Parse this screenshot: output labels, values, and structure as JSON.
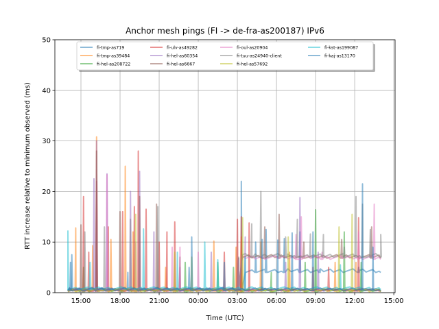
{
  "chart_data": {
    "type": "line",
    "title": "Anchor mesh pings (FI -> de-fra-as200187) IPv6",
    "xlabel": "Time (UTC)",
    "ylabel": "RTT increase relative to minimum observed (ms)",
    "x_unit": "hours since 00:00 of first day",
    "xlim": [
      13.0,
      39.1
    ],
    "ylim": [
      0,
      50
    ],
    "grid": true,
    "legend_placement": "top-center",
    "xticks": [
      {
        "x": 15,
        "label": "15:00"
      },
      {
        "x": 18,
        "label": "18:00"
      },
      {
        "x": 21,
        "label": "21:00"
      },
      {
        "x": 24,
        "label": "00:00"
      },
      {
        "x": 27,
        "label": "03:00"
      },
      {
        "x": 30,
        "label": "06:00"
      },
      {
        "x": 33,
        "label": "09:00"
      },
      {
        "x": 36,
        "label": "12:00"
      },
      {
        "x": 39,
        "label": "15:00"
      }
    ],
    "yticks": [
      0,
      10,
      20,
      30,
      40,
      50
    ],
    "series": [
      {
        "name": "fi-tmp-as719",
        "color": "#1f77b4",
        "baseline": [
          [
            14,
            0.5
          ],
          [
            27.2,
            0.5
          ],
          [
            27.3,
            4
          ],
          [
            38,
            4
          ]
        ],
        "spikes": [
          [
            14.3,
            7.5
          ],
          [
            18.6,
            4
          ],
          [
            23.3,
            5
          ],
          [
            27.3,
            22
          ],
          [
            28.4,
            10
          ],
          [
            29.2,
            12.5
          ],
          [
            30.6,
            10.7
          ],
          [
            31.8,
            12
          ],
          [
            33.3,
            4.5
          ],
          [
            36.3,
            5
          ]
        ]
      },
      {
        "name": "fi-tmp-as39484",
        "color": "#ff7f0e",
        "baseline": [
          [
            14,
            0.3
          ],
          [
            38,
            0.3
          ]
        ],
        "spikes": [
          [
            14.6,
            12.8
          ],
          [
            15.9,
            9.3
          ],
          [
            16.2,
            30.8
          ],
          [
            17.3,
            10.5
          ],
          [
            18.4,
            25
          ],
          [
            19.0,
            12
          ],
          [
            21.5,
            5
          ],
          [
            25.2,
            10.2
          ],
          [
            26.9,
            9
          ],
          [
            27.3,
            11
          ],
          [
            28.8,
            10
          ],
          [
            31.0,
            8
          ],
          [
            34.5,
            6
          ],
          [
            36.1,
            6
          ]
        ]
      },
      {
        "name": "fi-hel-as208722",
        "color": "#2ca02c",
        "baseline": [
          [
            14,
            0.2
          ],
          [
            38,
            0.2
          ]
        ],
        "spikes": [
          [
            15.2,
            5
          ],
          [
            23.0,
            6
          ],
          [
            25.5,
            6
          ],
          [
            26.7,
            5
          ],
          [
            29.6,
            4
          ],
          [
            32.2,
            6
          ],
          [
            33.0,
            16.4
          ],
          [
            35.2,
            12
          ],
          [
            36.5,
            6
          ]
        ]
      },
      {
        "name": "fi-ulv-as49282",
        "color": "#d62728",
        "baseline": [
          [
            14,
            0.3
          ],
          [
            38,
            0.3
          ]
        ],
        "spikes": [
          [
            15.2,
            19
          ],
          [
            15.6,
            8
          ],
          [
            16.2,
            22
          ],
          [
            17.1,
            13
          ],
          [
            18.2,
            16
          ],
          [
            19.1,
            17
          ],
          [
            19.4,
            28
          ],
          [
            20.0,
            16.5
          ],
          [
            21.0,
            10
          ],
          [
            21.6,
            12
          ],
          [
            22.2,
            14
          ],
          [
            26.0,
            8
          ],
          [
            27.0,
            14.5
          ],
          [
            27.3,
            15
          ],
          [
            27.9,
            13.8
          ],
          [
            32.8,
            5
          ],
          [
            34.0,
            5
          ],
          [
            36.3,
            14.8
          ]
        ]
      },
      {
        "name": "fi-hel-as60354",
        "color": "#9467bd",
        "baseline": [
          [
            14,
            0.3
          ],
          [
            38,
            0.3
          ]
        ],
        "spikes": [
          [
            16.0,
            22.5
          ],
          [
            16.2,
            30
          ],
          [
            17.0,
            23.5
          ],
          [
            18.8,
            20
          ],
          [
            19.5,
            24
          ],
          [
            20.6,
            12
          ],
          [
            22.6,
            5
          ],
          [
            25.0,
            8
          ],
          [
            27.6,
            11
          ],
          [
            30.7,
            6
          ],
          [
            31.8,
            18.8
          ],
          [
            33.2,
            8
          ]
        ]
      },
      {
        "name": "fi-hel-as6667",
        "color": "#8c564b",
        "baseline": [
          [
            14,
            0.3
          ],
          [
            27.0,
            0.3
          ],
          [
            27.1,
            6.8
          ],
          [
            38,
            6.8
          ]
        ],
        "spikes": [
          [
            15.0,
            13.4
          ],
          [
            16.2,
            28
          ],
          [
            18.0,
            16
          ],
          [
            19.5,
            19
          ],
          [
            20.8,
            17.5
          ],
          [
            22.6,
            7
          ],
          [
            29.1,
            13
          ],
          [
            30.2,
            15.5
          ],
          [
            32.1,
            10
          ],
          [
            35.0,
            10.5
          ],
          [
            37.3,
            13
          ]
        ]
      },
      {
        "name": "fi-oul-as20904",
        "color": "#e377c2",
        "baseline": [
          [
            14,
            0.3
          ],
          [
            27.0,
            0.3
          ],
          [
            27.1,
            6.6
          ],
          [
            38,
            6.6
          ]
        ],
        "spikes": [
          [
            17.0,
            23.3
          ],
          [
            19.2,
            10
          ],
          [
            22.0,
            9
          ],
          [
            22.6,
            9
          ],
          [
            24.0,
            8
          ],
          [
            31.5,
            11.5
          ],
          [
            31.9,
            15
          ],
          [
            33.5,
            8
          ],
          [
            36.3,
            12
          ],
          [
            37.5,
            17.5
          ]
        ]
      },
      {
        "name": "fi-tuu-as24940-client",
        "color": "#7f7f7f",
        "baseline": [
          [
            14,
            0.3
          ],
          [
            27.0,
            0.3
          ],
          [
            27.1,
            7
          ],
          [
            38,
            7
          ]
        ],
        "spikes": [
          [
            15.3,
            12
          ],
          [
            16.8,
            13
          ],
          [
            18.8,
            14.5
          ],
          [
            20.9,
            17
          ],
          [
            28.1,
            13.6
          ],
          [
            28.8,
            20
          ],
          [
            30.7,
            11
          ],
          [
            31.6,
            14.5
          ],
          [
            32.6,
            11.6
          ],
          [
            33.6,
            11.5
          ],
          [
            35.2,
            9
          ],
          [
            36.1,
            19
          ],
          [
            36.6,
            17.5
          ],
          [
            37.2,
            12.5
          ],
          [
            38.0,
            11.5
          ]
        ]
      },
      {
        "name": "fi-hel-as57692",
        "color": "#bcbd22",
        "baseline": [
          [
            14,
            0.2
          ],
          [
            38,
            0.2
          ]
        ],
        "spikes": [
          [
            19.2,
            15.5
          ],
          [
            22.2,
            8
          ],
          [
            23.5,
            7
          ],
          [
            27.4,
            14.8
          ],
          [
            30.9,
            11
          ],
          [
            34.8,
            13
          ],
          [
            35.8,
            15.5
          ]
        ]
      },
      {
        "name": "fi-kst-as199087",
        "color": "#17becf",
        "baseline": [
          [
            14,
            0.6
          ],
          [
            38,
            0.6
          ]
        ],
        "spikes": [
          [
            14.0,
            12.2
          ],
          [
            15.7,
            6
          ],
          [
            19.8,
            12.6
          ],
          [
            22.4,
            8
          ],
          [
            24.5,
            10
          ],
          [
            25.5,
            6.5
          ],
          [
            27.6,
            7
          ],
          [
            34.9,
            5.5
          ]
        ]
      },
      {
        "name": "fi-kaj-as13170",
        "color": "#1f77b4",
        "baseline": [
          [
            14,
            0.4
          ],
          [
            38,
            0.4
          ]
        ],
        "spikes": [
          [
            14.2,
            6
          ],
          [
            23.5,
            11
          ],
          [
            26.0,
            6
          ],
          [
            28.9,
            10.5
          ],
          [
            30.1,
            10.4
          ],
          [
            31.2,
            11.8
          ],
          [
            32.8,
            12
          ],
          [
            36.6,
            21.5
          ],
          [
            37.4,
            9
          ]
        ]
      }
    ]
  }
}
